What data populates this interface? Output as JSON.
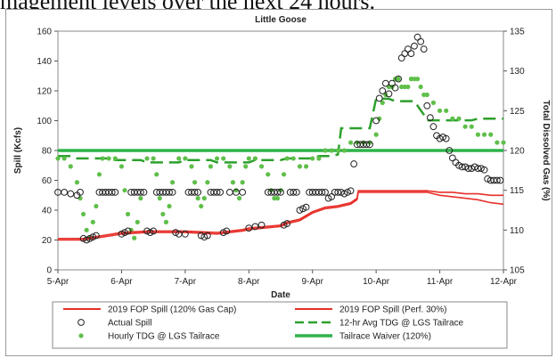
{
  "header_text": "magement levels over the next 24 hours.",
  "chart_data": {
    "type": "line",
    "title": "Little Goose",
    "xlabel": "Date",
    "ylabel": "Spill (Kcfs)",
    "y2label": "Total Dissolved Gas (%)",
    "xlim": [
      5,
      12
    ],
    "ylim": [
      0,
      160
    ],
    "y2lim": [
      105,
      135
    ],
    "x_ticks": [
      5,
      6,
      7,
      8,
      9,
      10,
      11,
      12
    ],
    "x_tick_labels": [
      "5-Apr",
      "6-Apr",
      "7-Apr",
      "8-Apr",
      "9-Apr",
      "10-Apr",
      "11-Apr",
      "12-Apr"
    ],
    "y_ticks": [
      0,
      20,
      40,
      60,
      80,
      100,
      120,
      140,
      160
    ],
    "y2_ticks": [
      105,
      110,
      115,
      120,
      125,
      130,
      135
    ],
    "grid": false,
    "legend_position": "bottom",
    "series": [
      {
        "name": "2019 FOP Spill (120% Gas Cap)",
        "axis": "left",
        "style": "line",
        "color": "#e8302a",
        "x": [
          5.0,
          5.4,
          5.7,
          6.0,
          6.4,
          6.6,
          7.0,
          7.5,
          7.9,
          8.0,
          8.5,
          8.6,
          8.8,
          9.0,
          9.2,
          9.4,
          9.6,
          9.7,
          9.72,
          10.0,
          10.4,
          10.8,
          11.0,
          11.2,
          11.4,
          11.6,
          11.8,
          12.0
        ],
        "y": [
          20,
          20,
          22,
          24,
          25,
          25,
          25,
          24,
          26,
          27,
          29,
          31,
          33,
          38,
          41,
          42,
          44,
          47,
          52,
          52,
          52,
          52,
          50,
          49,
          48,
          47,
          45,
          44
        ]
      },
      {
        "name": "2019 FOP Spill (Perf. 30%)",
        "axis": "left",
        "style": "line",
        "color": "#e8302a",
        "x": [
          5.0,
          5.4,
          5.7,
          6.0,
          6.4,
          6.6,
          7.0,
          7.5,
          7.9,
          8.0,
          8.5,
          8.6,
          8.8,
          9.0,
          9.2,
          9.4,
          9.6,
          9.7,
          9.72,
          10.0,
          10.4,
          10.8,
          11.0,
          11.2,
          11.4,
          11.6,
          11.8,
          12.0
        ],
        "y": [
          21,
          21,
          23,
          25,
          26,
          26,
          26,
          25,
          27,
          28,
          30,
          32,
          34,
          39,
          42,
          43,
          45,
          48,
          53,
          53,
          53,
          53,
          52,
          52,
          51,
          51,
          50,
          50
        ]
      },
      {
        "name": "Actual Spill",
        "axis": "left",
        "style": "marker-circle",
        "color": "#222222",
        "x": [
          5.0,
          5.1,
          5.2,
          5.3,
          5.35,
          5.4,
          5.45,
          5.5,
          5.55,
          5.6,
          5.65,
          5.7,
          5.75,
          5.8,
          5.85,
          5.9,
          6.0,
          6.05,
          6.1,
          6.15,
          6.2,
          6.25,
          6.3,
          6.35,
          6.4,
          6.45,
          6.5,
          6.55,
          6.6,
          6.65,
          6.7,
          6.75,
          6.8,
          6.85,
          6.9,
          7.0,
          7.05,
          7.1,
          7.15,
          7.2,
          7.25,
          7.3,
          7.35,
          7.4,
          7.45,
          7.5,
          7.55,
          7.6,
          7.65,
          7.7,
          7.8,
          7.9,
          8.0,
          8.1,
          8.2,
          8.3,
          8.35,
          8.4,
          8.45,
          8.5,
          8.55,
          8.6,
          8.65,
          8.7,
          8.75,
          8.8,
          8.85,
          8.9,
          8.95,
          9.0,
          9.05,
          9.1,
          9.15,
          9.2,
          9.25,
          9.3,
          9.35,
          9.4,
          9.45,
          9.5,
          9.55,
          9.6,
          9.65,
          9.7,
          9.75,
          9.8,
          9.85,
          9.9,
          10.0,
          10.05,
          10.1,
          10.15,
          10.2,
          10.25,
          10.3,
          10.35,
          10.4,
          10.45,
          10.5,
          10.55,
          10.6,
          10.65,
          10.7,
          10.75,
          10.8,
          10.85,
          10.9,
          10.95,
          11.0,
          11.05,
          11.1,
          11.15,
          11.2,
          11.25,
          11.3,
          11.35,
          11.4,
          11.45,
          11.5,
          11.55,
          11.6,
          11.65,
          11.7,
          11.75,
          11.8,
          11.85,
          11.9,
          11.95
        ],
        "y": [
          52,
          52,
          51,
          50,
          52,
          21,
          20,
          21,
          22,
          23,
          52,
          52,
          52,
          52,
          52,
          52,
          24,
          25,
          26,
          52,
          52,
          52,
          52,
          52,
          26,
          25,
          26,
          52,
          52,
          52,
          52,
          52,
          52,
          25,
          24,
          24,
          52,
          52,
          52,
          52,
          23,
          22,
          23,
          52,
          52,
          52,
          52,
          25,
          26,
          52,
          52,
          52,
          28,
          29,
          30,
          52,
          52,
          52,
          52,
          52,
          30,
          31,
          52,
          52,
          52,
          40,
          41,
          42,
          52,
          52,
          52,
          52,
          52,
          52,
          48,
          49,
          52,
          52,
          52,
          51,
          52,
          53,
          71,
          84,
          84,
          84,
          84,
          84,
          100,
          115,
          120,
          125,
          118,
          125,
          122,
          128,
          142,
          145,
          148,
          145,
          150,
          156,
          153,
          148,
          110,
          102,
          96,
          90,
          88,
          89,
          88,
          80,
          75,
          72,
          70,
          69,
          69,
          68,
          68,
          69,
          68,
          68,
          67,
          61,
          60,
          60,
          60,
          60
        ]
      },
      {
        "name": "12-hr Avg TDG @ LGS Tailrace",
        "axis": "right",
        "style": "dashed",
        "color": "#2ca02c",
        "x": [
          5.0,
          5.2,
          5.3,
          5.8,
          5.9,
          6.3,
          6.4,
          6.9,
          7.0,
          7.4,
          7.5,
          8.0,
          8.1,
          8.5,
          8.6,
          9.0,
          9.1,
          9.3,
          9.4,
          9.45,
          9.9,
          10.0,
          10.2,
          10.3,
          10.6,
          10.75,
          10.8,
          11.0,
          11.5,
          11.6,
          12.0
        ],
        "y2": [
          119.3,
          119.3,
          119.0,
          119.0,
          118.8,
          118.8,
          118.5,
          118.5,
          118.8,
          118.8,
          118.5,
          118.5,
          118.8,
          118.8,
          119.0,
          119.0,
          119.3,
          119.3,
          119.5,
          122.8,
          122.8,
          126.5,
          126.5,
          126.2,
          126.2,
          124.5,
          123.8,
          123.8,
          123.8,
          124.0,
          124.0
        ]
      },
      {
        "name": "Hourly TDG @ LGS Tailrace",
        "axis": "right",
        "style": "marker-dot",
        "color": "#5fbf4a",
        "x": [
          5.0,
          5.1,
          5.2,
          5.3,
          5.35,
          5.4,
          5.45,
          5.5,
          5.55,
          5.6,
          5.65,
          5.7,
          5.8,
          5.9,
          6.0,
          6.05,
          6.1,
          6.15,
          6.2,
          6.25,
          6.3,
          6.4,
          6.5,
          6.55,
          6.6,
          6.65,
          6.7,
          6.75,
          6.8,
          6.9,
          7.0,
          7.1,
          7.15,
          7.2,
          7.25,
          7.3,
          7.35,
          7.4,
          7.5,
          7.6,
          7.7,
          7.75,
          7.8,
          7.85,
          7.9,
          7.95,
          8.0,
          8.1,
          8.2,
          8.3,
          8.35,
          8.4,
          8.45,
          8.5,
          8.55,
          8.6,
          8.7,
          8.8,
          8.9,
          9.0,
          9.1,
          9.2,
          9.3,
          9.4,
          9.5,
          9.6,
          9.7,
          9.8,
          9.9,
          10.0,
          10.05,
          10.1,
          10.15,
          10.2,
          10.25,
          10.3,
          10.35,
          10.4,
          10.45,
          10.5,
          10.55,
          10.6,
          10.65,
          10.7,
          10.75,
          10.8,
          10.9,
          11.0,
          11.1,
          11.2,
          11.3,
          11.4,
          11.5,
          11.6,
          11.7,
          11.8,
          11.9,
          12.0
        ],
        "y2": [
          119,
          119,
          118,
          116,
          114,
          112,
          110,
          109,
          111,
          113,
          117,
          119,
          119,
          119,
          118,
          115,
          112,
          110,
          109,
          111,
          114,
          119,
          119,
          117,
          114,
          112,
          111,
          113,
          116,
          119,
          119,
          118,
          116,
          114,
          113,
          114,
          116,
          118,
          119,
          119,
          118,
          116,
          115,
          114,
          116,
          118,
          119,
          119,
          118,
          117,
          115,
          114,
          114,
          115,
          117,
          119,
          119,
          118,
          118,
          119,
          119,
          120,
          120,
          120,
          120,
          121,
          121,
          121,
          121,
          122,
          124,
          126,
          127,
          128,
          128,
          129,
          129,
          128,
          128,
          128,
          129,
          129,
          129,
          128,
          127,
          127,
          126,
          125,
          125,
          124,
          124,
          123,
          123,
          122,
          122,
          122,
          121,
          121
        ]
      },
      {
        "name": "Tailrace Waiver (120%)",
        "axis": "right",
        "style": "line",
        "color": "#2eb34a",
        "x": [
          5,
          12
        ],
        "y2": [
          120,
          120
        ]
      }
    ]
  }
}
